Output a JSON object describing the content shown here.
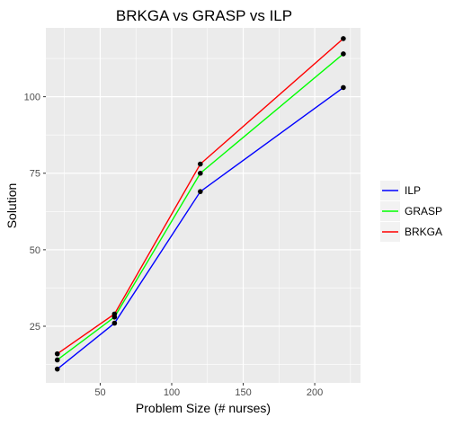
{
  "chart_data": {
    "type": "line",
    "title": "BRKGA vs GRASP vs ILP",
    "xlabel": "Problem Size (# nurses)",
    "ylabel": "Solution",
    "x": [
      20,
      60,
      120,
      220
    ],
    "xlim": [
      12,
      232
    ],
    "ylim": [
      6.5,
      122.5
    ],
    "xticks": [
      50,
      100,
      150,
      200
    ],
    "yticks": [
      25,
      50,
      75,
      100
    ],
    "xtick_labels": [
      "50",
      "100",
      "150",
      "200"
    ],
    "ytick_labels": [
      "25",
      "50",
      "75",
      "100"
    ],
    "grid": true,
    "legend_position": "right",
    "series": [
      {
        "name": "ILP",
        "color": "#0000ff",
        "values": [
          11,
          26,
          69,
          103
        ]
      },
      {
        "name": "GRASP",
        "color": "#00ff00",
        "values": [
          14,
          28,
          75,
          114
        ]
      },
      {
        "name": "BRKGA",
        "color": "#ff0000",
        "values": [
          16,
          29,
          78,
          119
        ]
      }
    ],
    "point_color": "#000000",
    "panel_background": "#ebebeb",
    "gridline_color": "#ffffff"
  }
}
